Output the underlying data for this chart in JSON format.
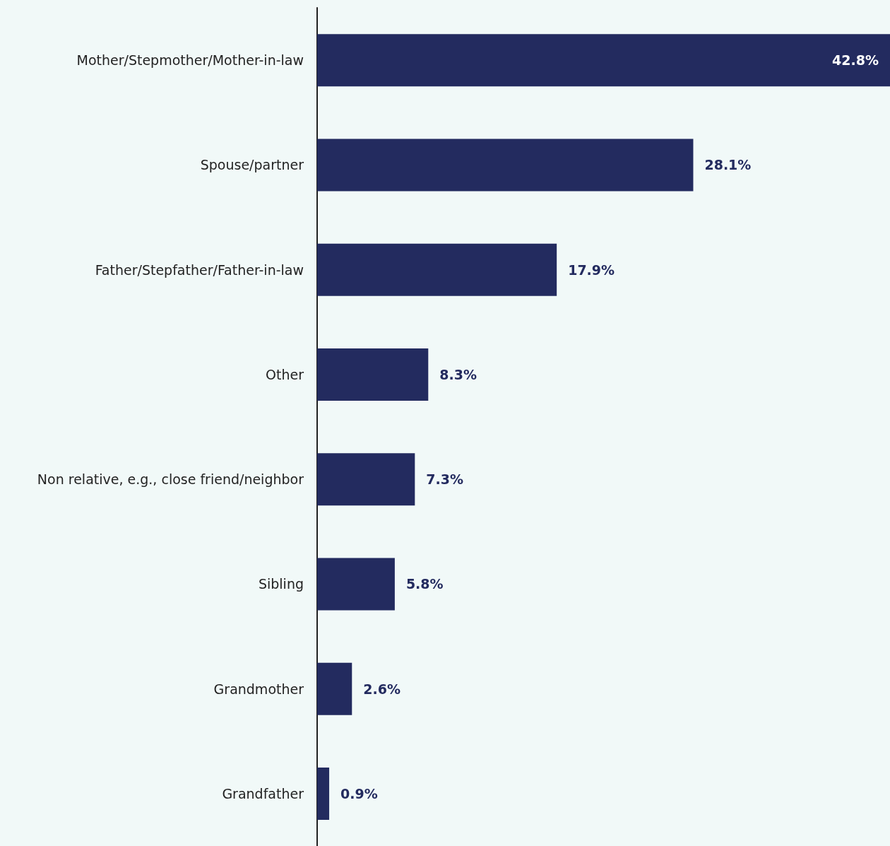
{
  "chart_data": {
    "type": "bar",
    "orientation": "horizontal",
    "categories": [
      "Mother/Stepmother/Mother-in-law",
      "Spouse/partner",
      "Father/Stepfather/Father-in-law",
      "Other",
      "Non relative, e.g., close friend/neighbor",
      "Sibling",
      "Grandmother",
      "Grandfather"
    ],
    "values": [
      42.8,
      28.1,
      17.9,
      8.3,
      7.3,
      5.8,
      2.6,
      0.9
    ],
    "value_labels": [
      "42.8%",
      "28.1%",
      "17.9%",
      "8.3%",
      "7.3%",
      "5.8%",
      "2.6%",
      "0.9%"
    ],
    "color": "#232b5f",
    "grid": false
  }
}
